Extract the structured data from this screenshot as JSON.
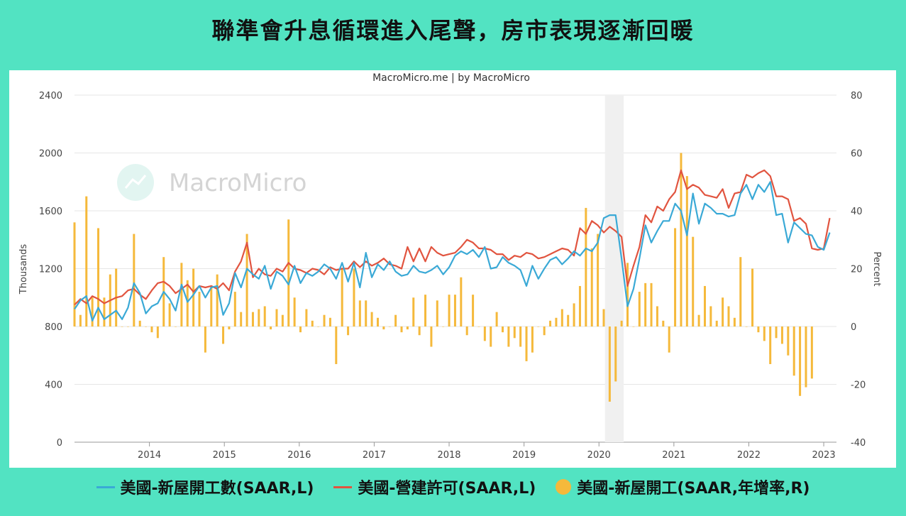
{
  "title": "聯準會升息循環進入尾聲，房市表現逐漸回暖",
  "source_label": "MacroMicro.me | by MacroMicro",
  "watermark": "MacroMicro",
  "chart_data": {
    "type": "line",
    "x_start": 2013.0,
    "x_end": 2023.17,
    "year_ticks": [
      "2014",
      "2015",
      "2016",
      "2017",
      "2018",
      "2019",
      "2020",
      "2021",
      "2022",
      "2023"
    ],
    "recession_band": [
      2020.08,
      2020.33
    ],
    "left_axis": {
      "label": "Thousands",
      "ticks": [
        0,
        400,
        800,
        1200,
        1600,
        2000,
        2400
      ],
      "range": [
        0,
        2400
      ]
    },
    "right_axis": {
      "label": "Percent",
      "ticks": [
        -40,
        -20,
        0,
        20,
        40,
        60,
        80
      ],
      "range": [
        -40,
        80
      ]
    },
    "colors": {
      "starts": "#3aa9d6",
      "permits": "#e1543f",
      "yoy": "#f5b93b"
    },
    "series": [
      {
        "name": "美國-新屋開工數(SAAR,L)",
        "axis": "left",
        "kind": "line",
        "values": [
          920,
          980,
          1010,
          840,
          930,
          850,
          880,
          910,
          850,
          930,
          1100,
          1030,
          890,
          940,
          960,
          1040,
          990,
          910,
          1090,
          970,
          1020,
          1080,
          1000,
          1070,
          1080,
          880,
          960,
          1170,
          1070,
          1200,
          1160,
          1130,
          1220,
          1060,
          1180,
          1150,
          1090,
          1220,
          1100,
          1170,
          1150,
          1180,
          1230,
          1200,
          1130,
          1240,
          1110,
          1240,
          1070,
          1310,
          1140,
          1230,
          1190,
          1250,
          1180,
          1150,
          1160,
          1220,
          1180,
          1170,
          1190,
          1220,
          1160,
          1210,
          1290,
          1320,
          1300,
          1330,
          1280,
          1350,
          1200,
          1210,
          1280,
          1240,
          1220,
          1190,
          1080,
          1220,
          1130,
          1200,
          1260,
          1280,
          1230,
          1270,
          1320,
          1290,
          1340,
          1320,
          1380,
          1550,
          1570,
          1570,
          1270,
          940,
          1060,
          1270,
          1500,
          1380,
          1460,
          1530,
          1530,
          1650,
          1600,
          1430,
          1720,
          1510,
          1650,
          1620,
          1580,
          1580,
          1560,
          1570,
          1720,
          1780,
          1680,
          1780,
          1730,
          1800,
          1570,
          1580,
          1380,
          1520,
          1480,
          1440,
          1430,
          1350,
          1330,
          1450
        ]
      },
      {
        "name": "美國-營建許可(SAAR,L)",
        "axis": "left",
        "kind": "line",
        "values": [
          950,
          990,
          960,
          1010,
          990,
          960,
          980,
          1000,
          1010,
          1050,
          1060,
          1020,
          990,
          1050,
          1100,
          1110,
          1080,
          1030,
          1060,
          1090,
          1040,
          1080,
          1070,
          1080,
          1060,
          1100,
          1050,
          1180,
          1250,
          1380,
          1140,
          1200,
          1160,
          1150,
          1200,
          1180,
          1240,
          1200,
          1190,
          1170,
          1200,
          1190,
          1160,
          1210,
          1190,
          1200,
          1200,
          1250,
          1210,
          1250,
          1220,
          1240,
          1270,
          1230,
          1220,
          1200,
          1350,
          1250,
          1340,
          1250,
          1350,
          1310,
          1290,
          1300,
          1310,
          1350,
          1400,
          1380,
          1340,
          1340,
          1330,
          1300,
          1300,
          1260,
          1290,
          1280,
          1310,
          1300,
          1270,
          1280,
          1300,
          1320,
          1340,
          1330,
          1290,
          1480,
          1440,
          1530,
          1500,
          1450,
          1490,
          1460,
          1420,
          1080,
          1220,
          1350,
          1570,
          1520,
          1630,
          1600,
          1680,
          1730,
          1880,
          1750,
          1780,
          1760,
          1710,
          1700,
          1690,
          1750,
          1620,
          1720,
          1730,
          1850,
          1830,
          1860,
          1880,
          1840,
          1700,
          1700,
          1680,
          1530,
          1550,
          1510,
          1340,
          1330,
          1340,
          1550
        ]
      },
      {
        "name": "美國-新屋開工(SAAR,年增率,R)",
        "axis": "right",
        "kind": "bar",
        "values": [
          36,
          4,
          45,
          10,
          34,
          10,
          18,
          20,
          0,
          0,
          32,
          2,
          0,
          -2,
          -4,
          24,
          8,
          0,
          22,
          16,
          20,
          12,
          -9,
          14,
          18,
          -6,
          -1,
          12,
          5,
          32,
          5,
          6,
          7,
          -1,
          6,
          4,
          37,
          10,
          -2,
          6,
          2,
          0,
          4,
          3,
          -13,
          20,
          -3,
          20,
          9,
          9,
          5,
          3,
          -1,
          0,
          4,
          -2,
          -1,
          10,
          -3,
          11,
          -7,
          9,
          0,
          11,
          11,
          17,
          -3,
          11,
          0,
          -5,
          -7,
          5,
          -2,
          -7,
          -4,
          -7,
          -12,
          -9,
          0,
          -3,
          2,
          3,
          6,
          4,
          8,
          14,
          41,
          27,
          32,
          6,
          -26,
          -19,
          2,
          22,
          0,
          12,
          15,
          15,
          7,
          2,
          -9,
          34,
          60,
          52,
          31,
          4,
          14,
          7,
          2,
          10,
          7,
          3,
          24,
          0,
          20,
          -2,
          -5,
          -13,
          -4,
          -6,
          -10,
          -17,
          -24,
          -21,
          -18
        ]
      }
    ]
  }
}
